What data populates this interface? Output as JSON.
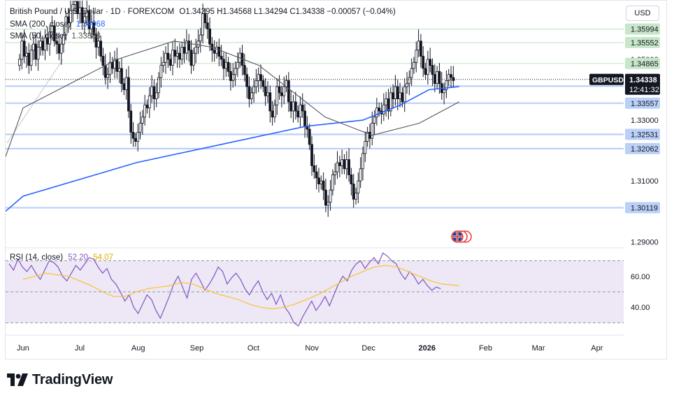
{
  "header": {
    "title": "British Pound / U.S. Dollar · 1D · FOREXCOM",
    "ohlc": "O1.34395  H1.34568  L1.34294  C1.34338  −0.00057 (−0.04%)",
    "sma200_label": "SMA (200, close)",
    "sma200_value": "1.34068",
    "sma50_label": "SMA (50, close)",
    "sma50_value": "1.33888",
    "currency": "USD"
  },
  "rsi_legend": {
    "label": "RSI (14, close)",
    "value": "52.20",
    "ma_value": "54.07"
  },
  "brand": {
    "name": "TradingView"
  },
  "colors": {
    "candle": "#131722",
    "sma200": "#2962ff",
    "sma50": "#555555",
    "rsi": "#7e57c2",
    "rsi_ma": "#f7c530",
    "rsi_band": "#ede7f6",
    "level_blue": "#d7e3fb",
    "level_green": "#dff1df",
    "price_badge": "#131722"
  },
  "chart_data": {
    "type": "candlestick",
    "y_range": [
      1.288,
      1.3695
    ],
    "x_labels": [
      "Jun",
      "Jul",
      "Aug",
      "Sep",
      "Oct",
      "Nov",
      "Dec",
      "2026",
      "Feb",
      "Mar",
      "Apr"
    ],
    "x_label_days": [
      0,
      30,
      61,
      92,
      122,
      153,
      183,
      214,
      245,
      273,
      304
    ],
    "y_ticks": [
      "1.33000",
      "1.31000",
      "1.29000"
    ],
    "y_tick_values": [
      1.33,
      1.31,
      1.29
    ],
    "levels": [
      {
        "price": 1.35994,
        "label": "1.35994",
        "kind": "green"
      },
      {
        "price": 1.35552,
        "label": "1.35552",
        "kind": "green"
      },
      {
        "price": 1.34865,
        "label": "1.34865",
        "kind": "green"
      },
      {
        "price": 1.34117,
        "label": "1.34117",
        "kind": "blue"
      },
      {
        "price": 1.33557,
        "label": "1.33557",
        "kind": "blue"
      },
      {
        "price": 1.32531,
        "label": "1.32531",
        "kind": "blue"
      },
      {
        "price": 1.32062,
        "label": "1.32062",
        "kind": "blue"
      },
      {
        "price": 1.30119,
        "label": "1.30119",
        "kind": "blue"
      }
    ],
    "hidden_tick_label": "1.35000",
    "last_price": {
      "symbol": "GBPUSD",
      "price": "1.34338",
      "countdown": "12:41:32"
    },
    "closes": [
      1.35,
      1.356,
      1.351,
      1.352,
      1.348,
      1.353,
      1.355,
      1.35,
      1.354,
      1.356,
      1.353,
      1.357,
      1.355,
      1.359,
      1.361,
      1.356,
      1.355,
      1.352,
      1.355,
      1.358,
      1.364,
      1.362,
      1.366,
      1.368,
      1.369,
      1.365,
      1.367,
      1.362,
      1.364,
      1.366,
      1.36,
      1.362,
      1.358,
      1.354,
      1.356,
      1.351,
      1.348,
      1.344,
      1.345,
      1.349,
      1.347,
      1.35,
      1.346,
      1.347,
      1.342,
      1.34,
      1.344,
      1.333,
      1.326,
      1.324,
      1.323,
      1.326,
      1.329,
      1.331,
      1.335,
      1.334,
      1.338,
      1.341,
      1.337,
      1.339,
      1.344,
      1.348,
      1.349,
      1.352,
      1.35,
      1.348,
      1.353,
      1.351,
      1.352,
      1.35,
      1.354,
      1.352,
      1.356,
      1.353,
      1.348,
      1.352,
      1.354,
      1.356,
      1.358,
      1.365,
      1.362,
      1.36,
      1.355,
      1.353,
      1.352,
      1.354,
      1.351,
      1.35,
      1.347,
      1.349,
      1.346,
      1.343,
      1.345,
      1.347,
      1.349,
      1.352,
      1.348,
      1.345,
      1.341,
      1.337,
      1.339,
      1.341,
      1.343,
      1.345,
      1.343,
      1.341,
      1.338,
      1.339,
      1.333,
      1.331,
      1.335,
      1.341,
      1.339,
      1.338,
      1.341,
      1.343,
      1.336,
      1.333,
      1.336,
      1.333,
      1.331,
      1.335,
      1.333,
      1.328,
      1.327,
      1.322,
      1.315,
      1.313,
      1.311,
      1.309,
      1.31,
      1.307,
      1.302,
      1.303,
      1.307,
      1.312,
      1.313,
      1.316,
      1.315,
      1.317,
      1.314,
      1.317,
      1.312,
      1.309,
      1.304,
      1.306,
      1.31,
      1.314,
      1.319,
      1.323,
      1.326,
      1.324,
      1.329,
      1.331,
      1.334,
      1.333,
      1.332,
      1.335,
      1.337,
      1.333,
      1.339,
      1.337,
      1.341,
      1.337,
      1.339,
      1.336,
      1.341,
      1.342,
      1.344,
      1.347,
      1.349,
      1.353,
      1.356,
      1.351,
      1.347,
      1.345,
      1.35,
      1.348,
      1.345,
      1.342,
      1.346,
      1.342,
      1.339,
      1.34,
      1.343,
      1.345,
      1.344,
      1.343
    ],
    "sma200": [
      1.305,
      1.316,
      1.324,
      1.328,
      1.33,
      1.335,
      1.34,
      1.341
    ],
    "sma200_days": [
      0,
      60,
      120,
      150,
      180,
      200,
      215,
      231
    ],
    "sma50": [
      1.334,
      1.35,
      1.356,
      1.354,
      1.348,
      1.331,
      1.325,
      1.329,
      1.336
    ],
    "sma50_days": [
      0,
      50,
      80,
      100,
      125,
      160,
      185,
      210,
      231
    ],
    "rsi": {
      "type": "line",
      "label": "RSI (14, close)",
      "levels": [
        70,
        50,
        30
      ],
      "y_ticks": [
        "60.00",
        "40.00"
      ],
      "y_tick_values": [
        60,
        40
      ],
      "y_range": [
        23,
        77
      ],
      "values": [
        68,
        64,
        71,
        66,
        63,
        67,
        62,
        58,
        64,
        70,
        69,
        66,
        60,
        57,
        62,
        67,
        64,
        68,
        72,
        71,
        66,
        62,
        65,
        58,
        55,
        50,
        44,
        48,
        40,
        36,
        42,
        48,
        45,
        38,
        33,
        40,
        47,
        55,
        60,
        53,
        46,
        58,
        62,
        57,
        51,
        55,
        60,
        66,
        63,
        55,
        59,
        62,
        58,
        52,
        48,
        53,
        57,
        50,
        45,
        49,
        42,
        48,
        40,
        36,
        30,
        28,
        34,
        39,
        44,
        38,
        42,
        47,
        41,
        48,
        55,
        60,
        57,
        64,
        68,
        70,
        65,
        69,
        72,
        68,
        75,
        73,
        70,
        68,
        62,
        58,
        63,
        60,
        55,
        58,
        54,
        51,
        53,
        52
      ],
      "ma": [
        58,
        60,
        62,
        61,
        60,
        57,
        54,
        50,
        47,
        47,
        50,
        52,
        53,
        54,
        56,
        55,
        52,
        49,
        47,
        45,
        42,
        40,
        39,
        40,
        42,
        45,
        48,
        52,
        56,
        60,
        63,
        66,
        67,
        66,
        63,
        60,
        57,
        55,
        54
      ],
      "ma_days": [
        0,
        6,
        12,
        18,
        24,
        30,
        36,
        42,
        48,
        54,
        60,
        66,
        72,
        78,
        84,
        90,
        96,
        102,
        108,
        114,
        120,
        126,
        132,
        138,
        144,
        150,
        156,
        162,
        168,
        174,
        180,
        186,
        192,
        198,
        204,
        210,
        216,
        222,
        231
      ]
    }
  }
}
